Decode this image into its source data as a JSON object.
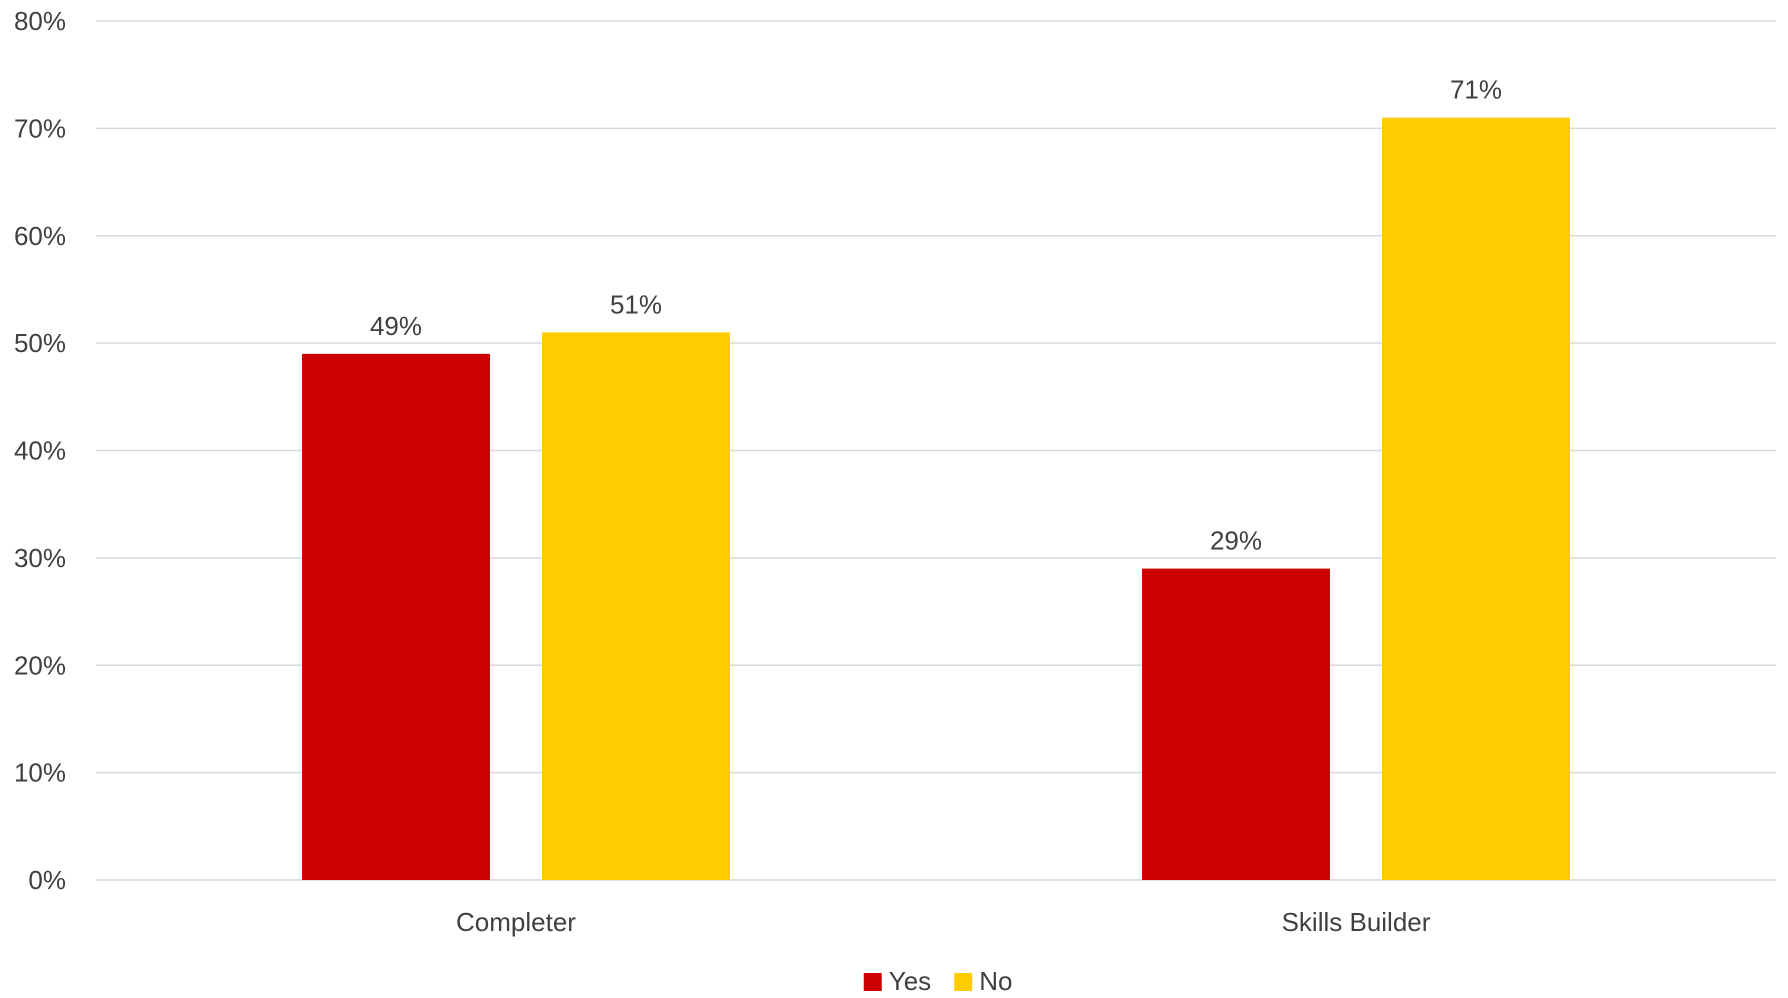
{
  "chart_data": {
    "type": "bar",
    "categories": [
      "Completer",
      "Skills Builder"
    ],
    "series": [
      {
        "name": "Yes",
        "values": [
          49,
          29
        ],
        "color": "#cc0000"
      },
      {
        "name": "No",
        "values": [
          51,
          71
        ],
        "color": "#ffcc00"
      }
    ],
    "data_labels": [
      [
        "49%",
        "29%"
      ],
      [
        "51%",
        "71%"
      ]
    ],
    "ylim": [
      0,
      80
    ],
    "y_ticks": [
      0,
      10,
      20,
      30,
      40,
      50,
      60,
      70,
      80
    ],
    "y_tick_labels": [
      "0%",
      "10%",
      "20%",
      "30%",
      "40%",
      "50%",
      "60%",
      "70%",
      "80%"
    ],
    "grid": true,
    "legend": "bottom-center",
    "title": "",
    "xlabel": "",
    "ylabel": ""
  }
}
